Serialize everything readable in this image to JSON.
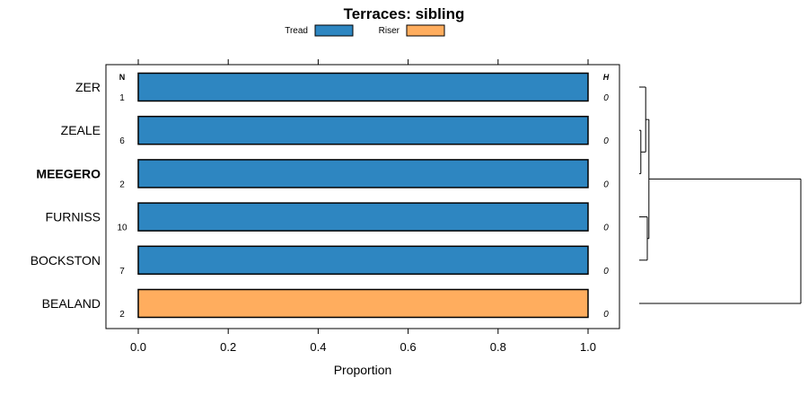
{
  "chart_data": {
    "type": "bar",
    "title": "Terraces: sibling",
    "xlabel": "Proportion",
    "xlim": [
      0,
      1
    ],
    "xticks": [
      0.0,
      0.2,
      0.4,
      0.6,
      0.8,
      1.0
    ],
    "xtick_labels": [
      "0.0",
      "0.2",
      "0.4",
      "0.6",
      "0.8",
      "1.0"
    ],
    "column_headers": {
      "n": "N",
      "h": "H"
    },
    "legend": [
      {
        "name": "Tread",
        "color": "#2e86c1"
      },
      {
        "name": "Riser",
        "color": "#ffad5e"
      }
    ],
    "rows": [
      {
        "label": "ZER",
        "n": "1",
        "h": "0",
        "tread": 1.0,
        "riser": 0.0,
        "highlight": false
      },
      {
        "label": "ZEALE",
        "n": "6",
        "h": "0",
        "tread": 1.0,
        "riser": 0.0,
        "highlight": false
      },
      {
        "label": "MEEGERO",
        "n": "2",
        "h": "0",
        "tread": 1.0,
        "riser": 0.0,
        "highlight": true
      },
      {
        "label": "FURNISS",
        "n": "10",
        "h": "0",
        "tread": 1.0,
        "riser": 0.0,
        "highlight": false
      },
      {
        "label": "BOCKSTON",
        "n": "7",
        "h": "0",
        "tread": 1.0,
        "riser": 0.0,
        "highlight": false
      },
      {
        "label": "BEALAND",
        "n": "2",
        "h": "0",
        "tread": 0.0,
        "riser": 1.0,
        "highlight": false
      }
    ],
    "dendrogram": {
      "merges": [
        {
          "a": 1,
          "b": 2,
          "height": 0.01
        },
        {
          "a": 0,
          "b": "m0",
          "height": 0.04
        },
        {
          "a": 3,
          "b": 4,
          "height": 0.05
        },
        {
          "a": "m1",
          "b": "m2",
          "height": 0.06
        },
        {
          "a": "m3",
          "b": 5,
          "height": 1.0
        }
      ]
    }
  }
}
